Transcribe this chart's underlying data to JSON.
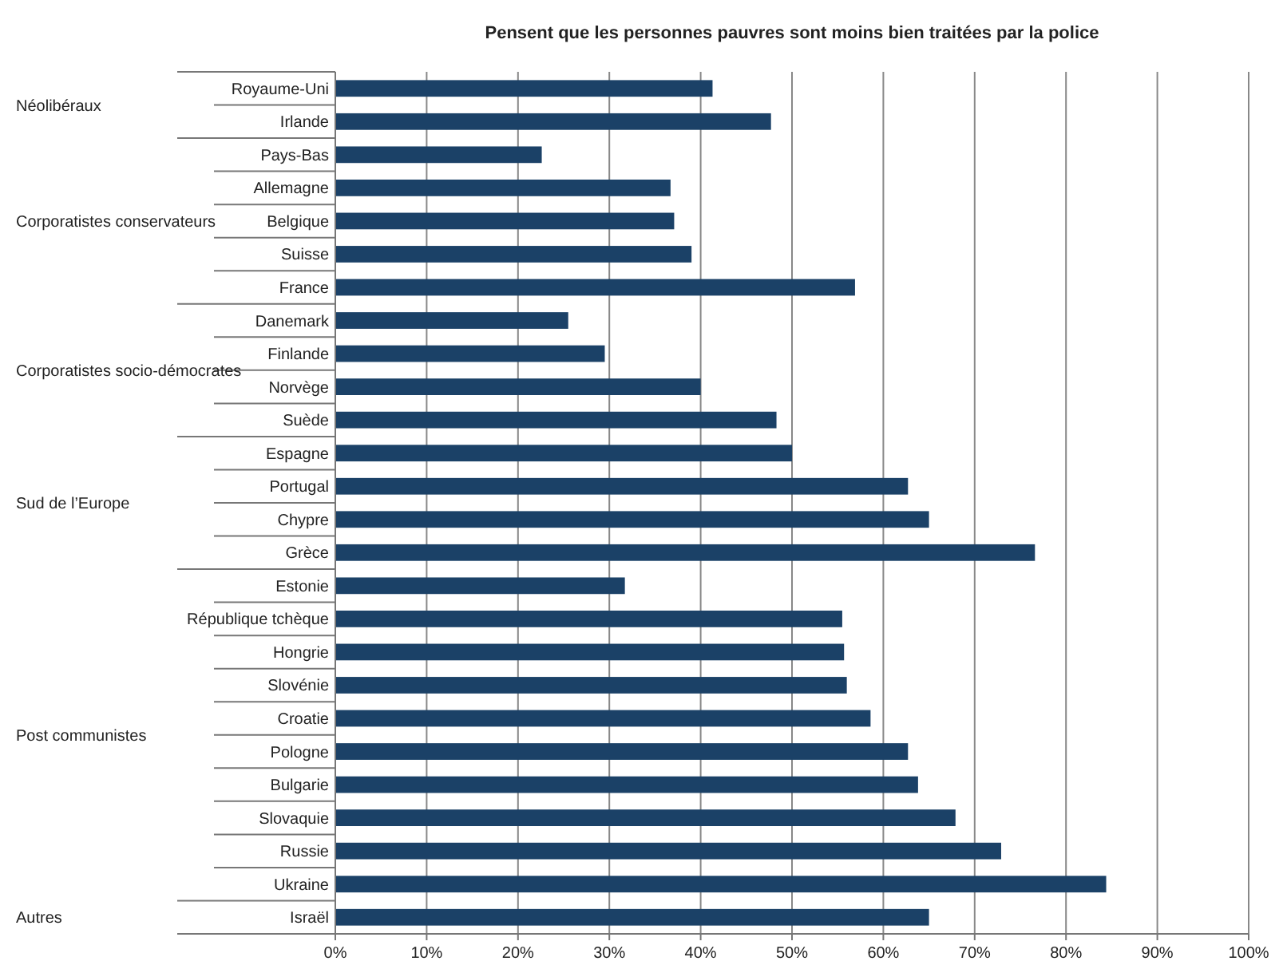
{
  "chart_data": {
    "type": "bar",
    "orientation": "horizontal",
    "title": "Pensent que les personnes pauvres sont moins bien traitées par la police",
    "categories": [
      "Royaume-Uni",
      "Irlande",
      "Pays-Bas",
      "Allemagne",
      "Belgique",
      "Suisse",
      "France",
      "Danemark",
      "Finlande",
      "Norvège",
      "Suède",
      "Espagne",
      "Portugal",
      "Chypre",
      "Grèce",
      "Estonie",
      "République tchèque",
      "Hongrie",
      "Slovénie",
      "Croatie",
      "Pologne",
      "Bulgarie",
      "Slovaquie",
      "Russie",
      "Ukraine",
      "Israël"
    ],
    "values": [
      41.3,
      47.7,
      22.6,
      36.7,
      37.1,
      39.0,
      56.9,
      25.5,
      29.5,
      40.0,
      48.3,
      50.0,
      62.7,
      65.0,
      76.6,
      31.7,
      55.5,
      55.7,
      56.0,
      58.6,
      62.7,
      63.8,
      67.9,
      72.9,
      84.4,
      65.0
    ],
    "color": "#1b4167",
    "xlim": [
      0,
      100
    ],
    "xticks": [
      {
        "value": 0,
        "label": "0%"
      },
      {
        "value": 10,
        "label": "10%"
      },
      {
        "value": 20,
        "label": "20%"
      },
      {
        "value": 30,
        "label": "30%"
      },
      {
        "value": 40,
        "label": "40%"
      },
      {
        "value": 50,
        "label": "50%"
      },
      {
        "value": 60,
        "label": "60%"
      },
      {
        "value": 70,
        "label": "70%"
      },
      {
        "value": 80,
        "label": "80%"
      },
      {
        "value": 90,
        "label": "90%"
      },
      {
        "value": 100,
        "label": "100%"
      }
    ],
    "grid": "x",
    "annotations": [
      "Néolibéraux",
      "Corporatistes conservateurs",
      "Corporatistes socio-démocrates",
      "Sud de l’Europe",
      "Post communistes",
      "Autres"
    ]
  }
}
